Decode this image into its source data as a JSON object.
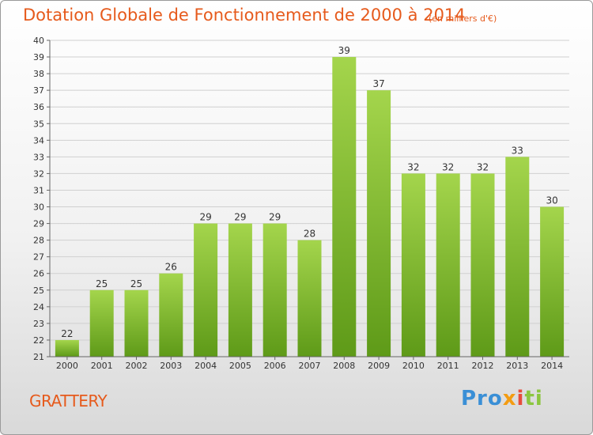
{
  "chart_data": {
    "type": "bar",
    "title": "Dotation Globale de Fonctionnement de 2000 à 2014",
    "subtitle": "(en milliers d'€)",
    "categories": [
      "2000",
      "2001",
      "2002",
      "2003",
      "2004",
      "2005",
      "2006",
      "2007",
      "2008",
      "2009",
      "2010",
      "2011",
      "2012",
      "2013",
      "2014"
    ],
    "values": [
      22,
      25,
      25,
      26,
      29,
      29,
      29,
      28,
      39,
      37,
      32,
      32,
      32,
      33,
      30
    ],
    "ylim": [
      21,
      40
    ],
    "yticks": [
      21,
      22,
      23,
      24,
      25,
      26,
      27,
      28,
      29,
      30,
      31,
      32,
      33,
      34,
      35,
      36,
      37,
      38,
      39,
      40
    ],
    "grid": true,
    "colors": {
      "bar_top": "#a4d54c",
      "bar_bottom": "#5e9a18",
      "grid": "#d0d0d0",
      "title": "#e65a1c"
    }
  },
  "footer": {
    "commune": "GRATTERY",
    "logo": {
      "p1": "Pro",
      "p2": "x",
      "p3": "i",
      "p4": "ti"
    }
  }
}
